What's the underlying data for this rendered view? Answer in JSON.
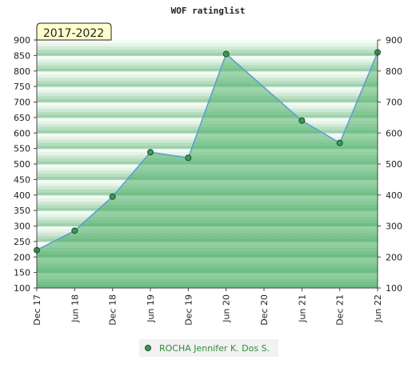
{
  "chart_data": {
    "type": "area",
    "title": "WOF ratinglist",
    "badge": "2017-2022",
    "ylim": [
      100,
      900
    ],
    "y_ticks": [
      100,
      150,
      200,
      250,
      300,
      350,
      400,
      450,
      500,
      550,
      600,
      650,
      700,
      750,
      800,
      850,
      900
    ],
    "y_ticks_right": [
      100,
      200,
      300,
      400,
      500,
      600,
      700,
      800,
      900
    ],
    "x_ticks": [
      "Dec 17",
      "Jun 18",
      "Dec 18",
      "Jun 19",
      "Dec 19",
      "Jun 20",
      "Dec 20",
      "Jun 21",
      "Dec 21",
      "Jun 22"
    ],
    "series": [
      {
        "name": "ROCHA Jennifer K. Dos S.",
        "x": [
          "Dec 17",
          "Jun 18",
          "Dec 18",
          "Jun 19",
          "Dec 19",
          "Jun 20",
          "Jun 21",
          "Dec 21",
          "Jun 22"
        ],
        "values": [
          222,
          285,
          395,
          538,
          520,
          855,
          640,
          568,
          860
        ]
      }
    ],
    "grid": "horizontal bands",
    "legend_position": "bottom-center",
    "colors": {
      "line": "#5b9bd5",
      "area": "#5cb874",
      "band_dark": "#9fd2ac",
      "band_light": "#eef8ef",
      "marker": "#3a9a54",
      "badge_bg": "#ffffcc"
    }
  }
}
